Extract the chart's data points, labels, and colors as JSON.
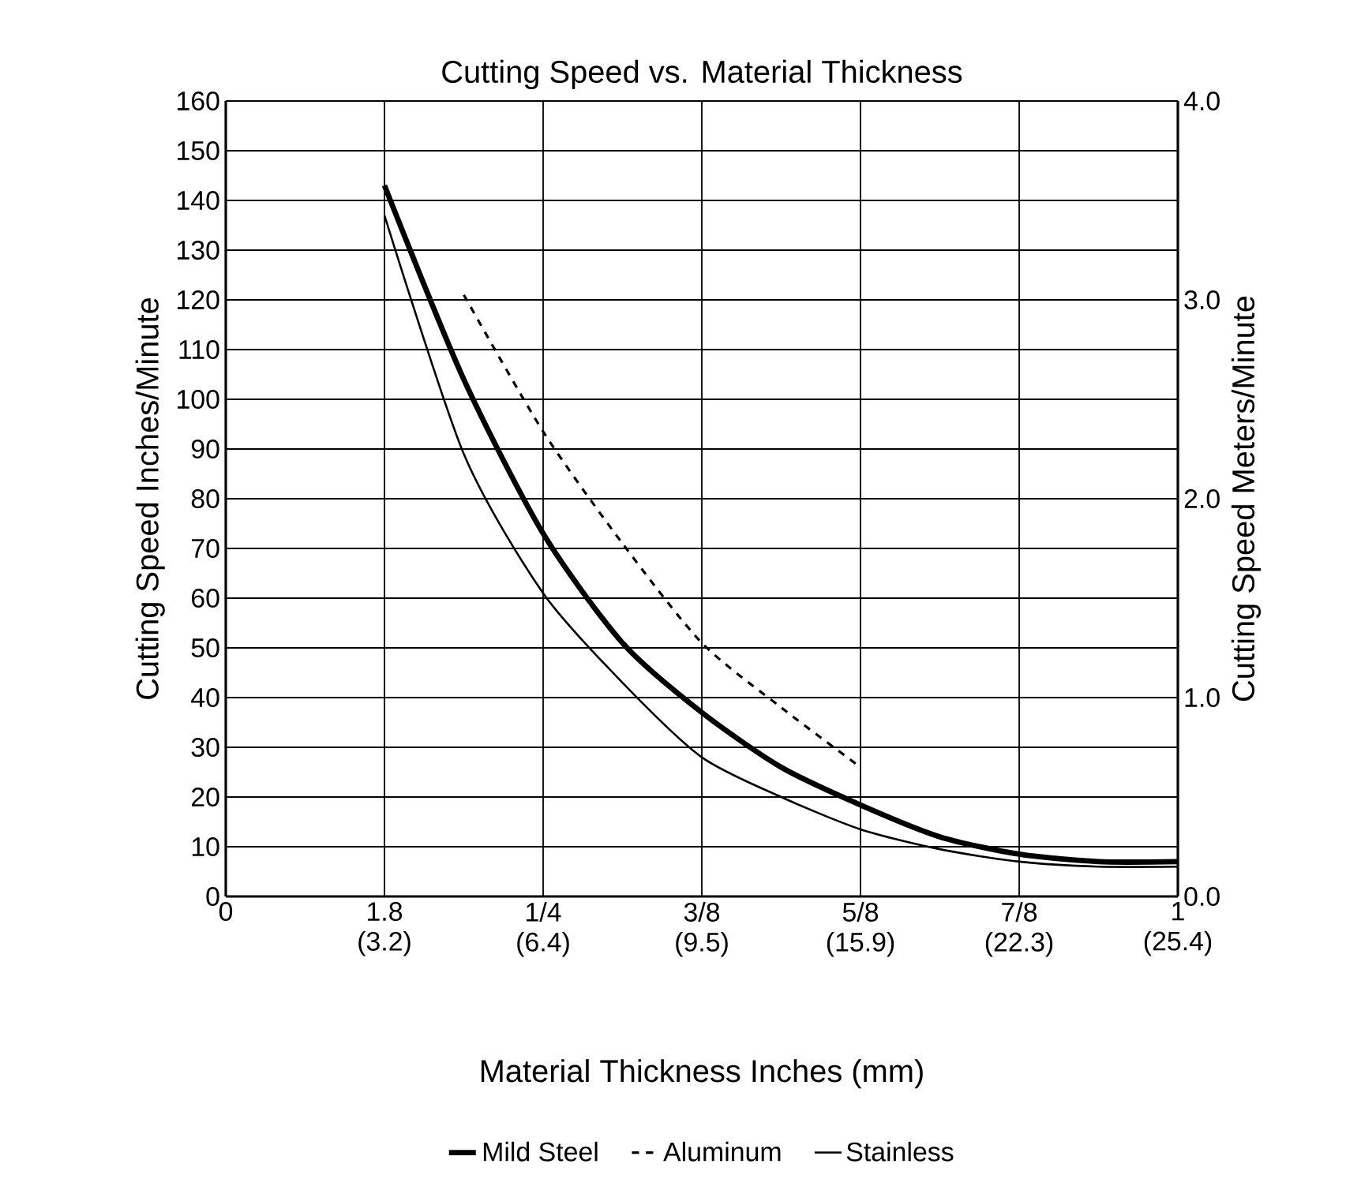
{
  "chart_data": {
    "type": "line",
    "title": "Cutting Speed vs. Material Thickness",
    "xlabel": "Material Thickness Inches (mm)",
    "ylabel": "Cutting Speed Inches/Minute",
    "y2label": "Cutting Speed Meters/Minute",
    "categories": [
      "0",
      null,
      "1.8 (3.2)",
      null,
      "1/4 (6.4)",
      null,
      "3/8 (9.5)",
      null,
      "5/8 (15.9)",
      null,
      "7/8 (22.3)",
      null,
      "1 (25.4)"
    ],
    "ylim": [
      0,
      160
    ],
    "yticks": [
      0,
      10,
      20,
      30,
      40,
      50,
      60,
      70,
      80,
      90,
      100,
      110,
      120,
      130,
      140,
      150,
      160
    ],
    "y2lim": [
      0,
      4
    ],
    "y2ticks": [
      {
        "value": 0,
        "label": "0.0"
      },
      {
        "value": 1,
        "label": "1.0"
      },
      {
        "value": 2,
        "label": "2.0"
      },
      {
        "value": 3,
        "label": "3.0"
      },
      {
        "value": 4,
        "label": "4.0"
      }
    ],
    "grid": true,
    "legend": "bottom",
    "series": [
      {
        "name": "Mild Steel",
        "color": "#000000",
        "line_style": "solid",
        "values": [
          null,
          null,
          143,
          104,
          73,
          51,
          37,
          26,
          18.4,
          12,
          8.5,
          7,
          7
        ]
      },
      {
        "name": "Aluminum",
        "color": "#000000",
        "line_style": "dashed",
        "values": [
          null,
          null,
          null,
          121,
          93.5,
          71,
          51,
          38,
          26,
          null,
          null,
          null,
          null
        ]
      },
      {
        "name": "Stainless",
        "color": "#000000",
        "line_style": "solid",
        "values": [
          null,
          null,
          137,
          89,
          61,
          43,
          28,
          20,
          13.5,
          9.5,
          7,
          6,
          6
        ]
      }
    ]
  }
}
